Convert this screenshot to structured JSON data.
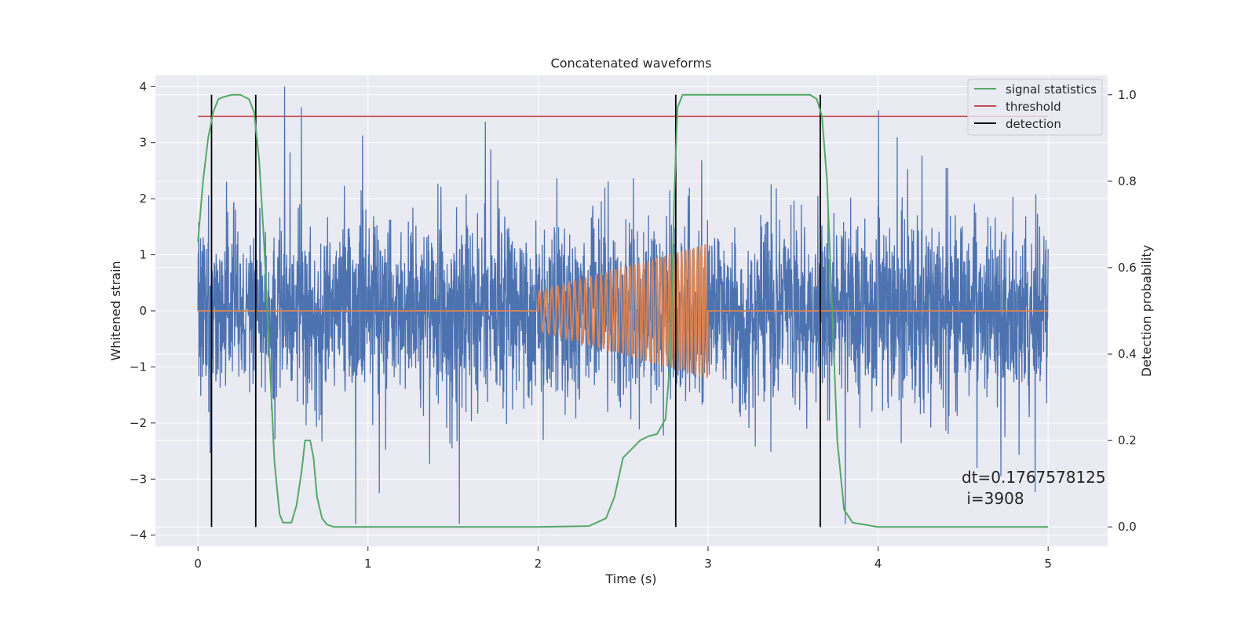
{
  "chart_data": {
    "type": "line",
    "title": "Concatenated waveforms",
    "xlabel": "Time (s)",
    "ylabel": "Whitened strain",
    "y2label": "Detection probability",
    "xlim": [
      -0.25,
      5.35
    ],
    "ylim": [
      -4.2,
      4.2
    ],
    "y2lim": [
      -0.045,
      1.045
    ],
    "xticks": [
      0,
      1,
      2,
      3,
      4,
      5
    ],
    "yticks": [
      -4,
      -3,
      -2,
      -1,
      0,
      1,
      2,
      3,
      4
    ],
    "y2ticks": [
      0.0,
      0.2,
      0.4,
      0.6,
      0.8,
      1.0
    ],
    "xtick_labels": [
      "0",
      "1",
      "2",
      "3",
      "4",
      "5"
    ],
    "ytick_labels": [
      "−4",
      "−3",
      "−2",
      "−1",
      "0",
      "1",
      "2",
      "3",
      "4"
    ],
    "y2tick_labels": [
      "0.0",
      "0.2",
      "0.4",
      "0.6",
      "0.8",
      "1.0"
    ],
    "grid": true,
    "legend_position": "top-right",
    "legend": [
      {
        "label": "signal statistics",
        "color": "#55a868"
      },
      {
        "label": "threshold",
        "color": "#c44e52"
      },
      {
        "label": "detection",
        "color": "#000000"
      }
    ],
    "colors": {
      "strain": "#4c72b0",
      "injection": "#dd8452",
      "signal_statistics": "#55a868",
      "threshold": "#c44e52",
      "detection": "#000000",
      "plot_bg": "#eaeaf2",
      "grid": "#ffffff"
    },
    "strain": {
      "x_range": [
        0,
        5
      ],
      "typical_amplitude": 0.75,
      "max_peak": 4.0,
      "min_peak": -3.8
    },
    "injection": {
      "x_start": 2.0,
      "x_end": 3.0,
      "amplitude_start": 0.35,
      "amplitude_end": 1.2,
      "cycles": 36
    },
    "threshold": {
      "value": 0.95,
      "x_range": [
        0,
        5
      ]
    },
    "detections": [
      0.08,
      0.34,
      2.81,
      3.66
    ],
    "detection_y_range": [
      0.0,
      1.0
    ],
    "signal_statistics": {
      "x": [
        0.0,
        0.03,
        0.06,
        0.09,
        0.12,
        0.15,
        0.2,
        0.25,
        0.3,
        0.33,
        0.36,
        0.39,
        0.42,
        0.45,
        0.48,
        0.5,
        0.55,
        0.58,
        0.61,
        0.63,
        0.66,
        0.68,
        0.7,
        0.73,
        0.76,
        0.8,
        1.0,
        1.5,
        2.0,
        2.3,
        2.4,
        2.45,
        2.5,
        2.55,
        2.6,
        2.65,
        2.7,
        2.75,
        2.78,
        2.8,
        2.82,
        2.85,
        2.9,
        3.0,
        3.5,
        3.6,
        3.64,
        3.67,
        3.7,
        3.73,
        3.76,
        3.8,
        3.85,
        4.0,
        5.0
      ],
      "y": [
        0.66,
        0.8,
        0.9,
        0.96,
        0.99,
        0.995,
        1.0,
        1.0,
        0.99,
        0.96,
        0.85,
        0.65,
        0.4,
        0.15,
        0.03,
        0.01,
        0.01,
        0.05,
        0.13,
        0.2,
        0.2,
        0.16,
        0.07,
        0.02,
        0.005,
        0.0,
        0.0,
        0.0,
        0.0,
        0.002,
        0.02,
        0.07,
        0.16,
        0.18,
        0.2,
        0.21,
        0.215,
        0.25,
        0.4,
        0.75,
        0.97,
        1.0,
        1.0,
        1.0,
        1.0,
        1.0,
        0.99,
        0.95,
        0.8,
        0.5,
        0.2,
        0.04,
        0.01,
        0.0,
        0.0
      ]
    }
  },
  "annotation": {
    "line1": "dt=0.1767578125",
    "line2": " i=3908"
  }
}
